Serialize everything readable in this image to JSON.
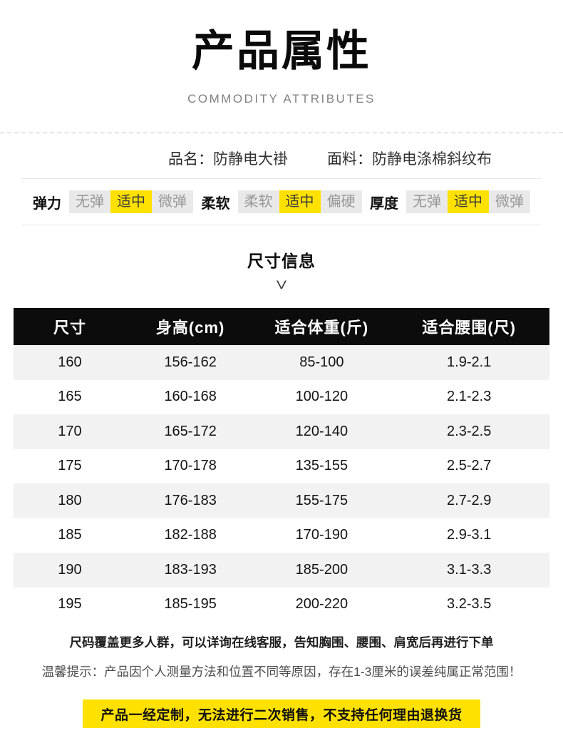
{
  "header": {
    "title": "产品属性",
    "subtitle": "COMMODITY ATTRIBUTES"
  },
  "product_info": {
    "name_label": "品名：",
    "name_value": "防静电大褂",
    "fabric_label": "面料：",
    "fabric_value": "防静电涤棉斜纹布"
  },
  "attributes": [
    {
      "label": "弹力",
      "options": [
        {
          "text": "无弹",
          "selected": false
        },
        {
          "text": "适中",
          "selected": true
        },
        {
          "text": "微弹",
          "selected": false
        }
      ]
    },
    {
      "label": "柔软",
      "options": [
        {
          "text": "柔软",
          "selected": false
        },
        {
          "text": "适中",
          "selected": true
        },
        {
          "text": "偏硬",
          "selected": false
        }
      ]
    },
    {
      "label": "厚度",
      "options": [
        {
          "text": "无弹",
          "selected": false
        },
        {
          "text": "适中",
          "selected": true
        },
        {
          "text": "微弹",
          "selected": false
        }
      ]
    }
  ],
  "size_section": {
    "title": "尺寸信息",
    "chevron": "V"
  },
  "size_table": {
    "headers": [
      "尺寸",
      "身高(cm)",
      "适合体重(斤)",
      "适合腰围(尺)"
    ],
    "rows": [
      [
        "160",
        "156-162",
        "85-100",
        "1.9-2.1"
      ],
      [
        "165",
        "160-168",
        "100-120",
        "2.1-2.3"
      ],
      [
        "170",
        "165-172",
        "120-140",
        "2.3-2.5"
      ],
      [
        "175",
        "170-178",
        "135-155",
        "2.5-2.7"
      ],
      [
        "180",
        "176-183",
        "155-175",
        "2.7-2.9"
      ],
      [
        "185",
        "182-188",
        "170-190",
        "2.9-3.1"
      ],
      [
        "190",
        "183-193",
        "185-200",
        "3.1-3.3"
      ],
      [
        "195",
        "185-195",
        "200-220",
        "3.2-3.5"
      ]
    ]
  },
  "notes": {
    "line1": "尺码覆盖更多人群，可以详询在线客服，告知胸围、腰围、肩宽后再进行下单",
    "line2": "温馨提示：产品因个人测量方法和位置不同等原因，存在1-3厘米的误差纯属正常范围！"
  },
  "banner": {
    "text": "产品一经定制，无法进行二次销售，不支持任何理由退换货"
  },
  "colors": {
    "highlight_yellow": "#ffe100",
    "option_gray_bg": "#e9e9e9",
    "option_gray_text": "#989898",
    "table_header_bg": "#0c0c0c",
    "table_alt_row_bg": "#f2f2f2"
  }
}
